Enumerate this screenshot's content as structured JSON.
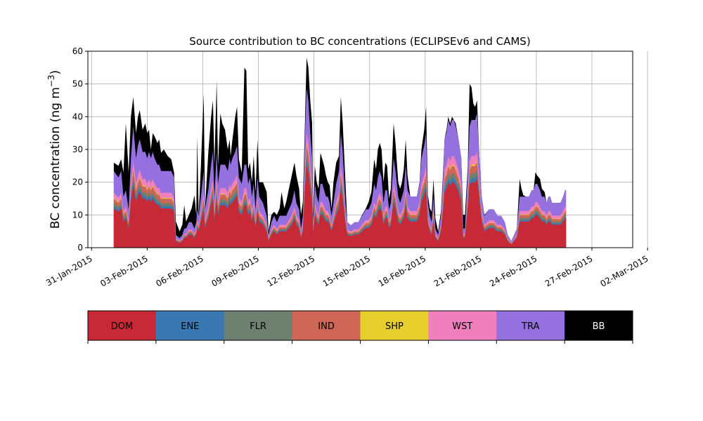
{
  "chart_data": {
    "type": "area",
    "stacked": true,
    "title": "Source contribution to BC concentrations (ECLIPSEv6 and CAMS)",
    "ylabel": "BC concentration (ng m",
    "ylabel_exponent": "−3",
    "ylabel_suffix": ")",
    "xlabel": "",
    "ylim": [
      0,
      60
    ],
    "yticks": [
      0,
      10,
      20,
      30,
      40,
      50,
      60
    ],
    "x_start_date": "31-Jan-2015",
    "xlim_days": [
      -0.2,
      29.2
    ],
    "xticks": [
      "31-Jan-2015",
      "03-Feb-2015",
      "06-Feb-2015",
      "09-Feb-2015",
      "12-Feb-2015",
      "15-Feb-2015",
      "18-Feb-2015",
      "21-Feb-2015",
      "24-Feb-2015",
      "27-Feb-2015",
      "02-Mar-2015"
    ],
    "grid": true,
    "total_points": [
      [
        1.2,
        26
      ],
      [
        1.45,
        25
      ],
      [
        1.6,
        27
      ],
      [
        1.72,
        23
      ],
      [
        1.85,
        38
      ],
      [
        2.0,
        23
      ],
      [
        2.12,
        40
      ],
      [
        2.25,
        46
      ],
      [
        2.4,
        35
      ],
      [
        2.5,
        40
      ],
      [
        2.6,
        42
      ],
      [
        2.75,
        36
      ],
      [
        2.9,
        38
      ],
      [
        3.0,
        35
      ],
      [
        3.1,
        36
      ],
      [
        3.2,
        30
      ],
      [
        3.3,
        35
      ],
      [
        3.4,
        34
      ],
      [
        3.55,
        32
      ],
      [
        3.65,
        33
      ],
      [
        3.75,
        29
      ],
      [
        3.9,
        30
      ],
      [
        4.1,
        28
      ],
      [
        4.3,
        27
      ],
      [
        4.45,
        23
      ],
      [
        4.55,
        8
      ],
      [
        4.75,
        5
      ],
      [
        4.9,
        7
      ],
      [
        5.0,
        13
      ],
      [
        5.1,
        8
      ],
      [
        5.25,
        10
      ],
      [
        5.4,
        12
      ],
      [
        5.55,
        16
      ],
      [
        5.65,
        10
      ],
      [
        5.7,
        34
      ],
      [
        5.78,
        10
      ],
      [
        5.9,
        25
      ],
      [
        6.05,
        47
      ],
      [
        6.12,
        12
      ],
      [
        6.3,
        29
      ],
      [
        6.45,
        40
      ],
      [
        6.55,
        45
      ],
      [
        6.63,
        25
      ],
      [
        6.75,
        51
      ],
      [
        6.82,
        25
      ],
      [
        6.95,
        41
      ],
      [
        7.05,
        38
      ],
      [
        7.2,
        36
      ],
      [
        7.35,
        30
      ],
      [
        7.45,
        33
      ],
      [
        7.5,
        28
      ],
      [
        7.6,
        33
      ],
      [
        7.75,
        40
      ],
      [
        7.85,
        43
      ],
      [
        7.95,
        27
      ],
      [
        8.1,
        23
      ],
      [
        8.25,
        55
      ],
      [
        8.35,
        54
      ],
      [
        8.45,
        24
      ],
      [
        8.55,
        26
      ],
      [
        8.65,
        20
      ],
      [
        8.75,
        28
      ],
      [
        8.85,
        17
      ],
      [
        8.95,
        33
      ],
      [
        9.05,
        20
      ],
      [
        9.25,
        20
      ],
      [
        9.45,
        17
      ],
      [
        9.55,
        5
      ],
      [
        9.7,
        10
      ],
      [
        9.85,
        11
      ],
      [
        10.0,
        10
      ],
      [
        10.15,
        12
      ],
      [
        10.25,
        17
      ],
      [
        10.4,
        12
      ],
      [
        10.5,
        14
      ],
      [
        10.65,
        18
      ],
      [
        10.8,
        22
      ],
      [
        10.95,
        26
      ],
      [
        11.05,
        22
      ],
      [
        11.2,
        18
      ],
      [
        11.3,
        10
      ],
      [
        11.4,
        14
      ],
      [
        11.52,
        39
      ],
      [
        11.6,
        58
      ],
      [
        11.7,
        55
      ],
      [
        11.8,
        45
      ],
      [
        11.9,
        38
      ],
      [
        11.96,
        10
      ],
      [
        12.05,
        25
      ],
      [
        12.15,
        20
      ],
      [
        12.25,
        18
      ],
      [
        12.35,
        29
      ],
      [
        12.45,
        27
      ],
      [
        12.55,
        25
      ],
      [
        12.65,
        22
      ],
      [
        12.75,
        20
      ],
      [
        12.85,
        19
      ],
      [
        12.95,
        12
      ],
      [
        13.05,
        20
      ],
      [
        13.2,
        26
      ],
      [
        13.35,
        28
      ],
      [
        13.45,
        46
      ],
      [
        13.55,
        38
      ],
      [
        13.7,
        20
      ],
      [
        13.8,
        7
      ],
      [
        14.0,
        6
      ],
      [
        14.2,
        7
      ],
      [
        14.4,
        7
      ],
      [
        14.6,
        10
      ],
      [
        14.8,
        12
      ],
      [
        14.95,
        14
      ],
      [
        15.1,
        17
      ],
      [
        15.25,
        27
      ],
      [
        15.35,
        24
      ],
      [
        15.45,
        30
      ],
      [
        15.55,
        32
      ],
      [
        15.65,
        30
      ],
      [
        15.75,
        20
      ],
      [
        15.85,
        26
      ],
      [
        15.95,
        25
      ],
      [
        16.05,
        15
      ],
      [
        16.15,
        18
      ],
      [
        16.3,
        38
      ],
      [
        16.4,
        32
      ],
      [
        16.55,
        20
      ],
      [
        16.65,
        18
      ],
      [
        16.75,
        20
      ],
      [
        16.85,
        24
      ],
      [
        16.95,
        33
      ],
      [
        17.05,
        22
      ],
      [
        17.2,
        10
      ],
      [
        17.4,
        10
      ],
      [
        17.55,
        11
      ],
      [
        17.7,
        20
      ],
      [
        17.8,
        30
      ],
      [
        17.95,
        36
      ],
      [
        18.05,
        43
      ],
      [
        18.15,
        16
      ],
      [
        18.25,
        12
      ],
      [
        18.35,
        11
      ],
      [
        18.45,
        21
      ],
      [
        18.55,
        9
      ],
      [
        18.7,
        5
      ],
      [
        18.85,
        11
      ],
      [
        18.95,
        21
      ],
      [
        19.05,
        32
      ],
      [
        19.15,
        36
      ],
      [
        19.25,
        40
      ],
      [
        19.35,
        38
      ],
      [
        19.45,
        40
      ],
      [
        19.55,
        39
      ],
      [
        19.65,
        38
      ],
      [
        19.8,
        30
      ],
      [
        19.95,
        27
      ],
      [
        20.05,
        10
      ],
      [
        20.15,
        10
      ],
      [
        20.3,
        25
      ],
      [
        20.4,
        50
      ],
      [
        20.5,
        49
      ],
      [
        20.6,
        44
      ],
      [
        20.7,
        43
      ],
      [
        20.8,
        45
      ],
      [
        20.9,
        30
      ],
      [
        21.05,
        15
      ],
      [
        21.2,
        10
      ],
      [
        21.45,
        10
      ],
      [
        21.7,
        9
      ],
      [
        21.9,
        8
      ],
      [
        22.1,
        7
      ],
      [
        22.3,
        6
      ],
      [
        22.45,
        3
      ],
      [
        22.65,
        2
      ],
      [
        22.8,
        3
      ],
      [
        22.95,
        5
      ],
      [
        23.1,
        21
      ],
      [
        23.2,
        18
      ],
      [
        23.3,
        16
      ],
      [
        23.45,
        14
      ],
      [
        23.6,
        13
      ],
      [
        23.75,
        15
      ],
      [
        23.85,
        15
      ],
      [
        23.95,
        23
      ],
      [
        24.05,
        22
      ],
      [
        24.2,
        21
      ],
      [
        24.3,
        18
      ],
      [
        24.45,
        17
      ],
      [
        24.55,
        12
      ],
      [
        24.65,
        14
      ],
      [
        24.75,
        13
      ],
      [
        24.85,
        12
      ],
      [
        25.0,
        12
      ],
      [
        25.15,
        13
      ],
      [
        25.3,
        12
      ],
      [
        25.45,
        13
      ],
      [
        25.55,
        12
      ],
      [
        25.6,
        11
      ]
    ],
    "dom_points": [
      [
        1.2,
        12
      ],
      [
        1.45,
        11
      ],
      [
        1.6,
        12
      ],
      [
        1.72,
        8
      ],
      [
        1.85,
        9
      ],
      [
        2.0,
        6
      ],
      [
        2.12,
        14
      ],
      [
        2.25,
        19
      ],
      [
        2.4,
        14
      ],
      [
        2.5,
        16
      ],
      [
        2.6,
        17
      ],
      [
        2.75,
        15
      ],
      [
        2.9,
        15
      ],
      [
        3.0,
        14
      ],
      [
        3.1,
        15
      ],
      [
        3.2,
        14
      ],
      [
        3.3,
        15
      ],
      [
        3.4,
        14
      ],
      [
        3.55,
        13
      ],
      [
        3.65,
        13
      ],
      [
        3.75,
        12
      ],
      [
        3.9,
        12
      ],
      [
        4.1,
        12
      ],
      [
        4.3,
        12
      ],
      [
        4.45,
        11
      ],
      [
        4.55,
        2
      ],
      [
        4.75,
        1.5
      ],
      [
        4.9,
        2
      ],
      [
        5.0,
        3
      ],
      [
        5.1,
        3
      ],
      [
        5.25,
        4
      ],
      [
        5.4,
        4
      ],
      [
        5.55,
        3
      ],
      [
        5.65,
        4
      ],
      [
        5.7,
        6
      ],
      [
        5.78,
        5
      ],
      [
        5.9,
        8
      ],
      [
        6.05,
        12
      ],
      [
        6.12,
        6
      ],
      [
        6.3,
        9
      ],
      [
        6.45,
        13
      ],
      [
        6.55,
        15
      ],
      [
        6.63,
        8
      ],
      [
        6.75,
        15
      ],
      [
        6.82,
        10
      ],
      [
        6.95,
        13
      ],
      [
        7.05,
        13
      ],
      [
        7.2,
        13
      ],
      [
        7.35,
        12
      ],
      [
        7.45,
        14
      ],
      [
        7.5,
        13
      ],
      [
        7.6,
        14
      ],
      [
        7.75,
        15
      ],
      [
        7.85,
        16
      ],
      [
        7.95,
        11
      ],
      [
        8.1,
        10
      ],
      [
        8.25,
        13
      ],
      [
        8.35,
        13
      ],
      [
        8.45,
        10
      ],
      [
        8.55,
        11
      ],
      [
        8.65,
        8
      ],
      [
        8.75,
        10
      ],
      [
        8.85,
        6
      ],
      [
        8.95,
        11
      ],
      [
        9.05,
        8
      ],
      [
        9.25,
        7
      ],
      [
        9.45,
        5
      ],
      [
        9.55,
        2
      ],
      [
        9.7,
        4
      ],
      [
        9.85,
        5
      ],
      [
        10.0,
        4
      ],
      [
        10.15,
        5
      ],
      [
        10.25,
        5
      ],
      [
        10.4,
        5
      ],
      [
        10.5,
        5
      ],
      [
        10.65,
        6
      ],
      [
        10.8,
        7
      ],
      [
        10.95,
        9
      ],
      [
        11.05,
        7
      ],
      [
        11.2,
        6
      ],
      [
        11.3,
        3
      ],
      [
        11.4,
        5
      ],
      [
        11.52,
        18
      ],
      [
        11.6,
        25
      ],
      [
        11.7,
        23
      ],
      [
        11.8,
        18
      ],
      [
        11.9,
        14
      ],
      [
        11.96,
        4
      ],
      [
        12.05,
        10
      ],
      [
        12.15,
        8
      ],
      [
        12.25,
        7
      ],
      [
        12.35,
        10
      ],
      [
        12.45,
        10
      ],
      [
        12.55,
        9
      ],
      [
        12.65,
        8
      ],
      [
        12.75,
        8
      ],
      [
        12.85,
        7
      ],
      [
        12.95,
        5
      ],
      [
        13.05,
        7
      ],
      [
        13.2,
        10
      ],
      [
        13.35,
        12
      ],
      [
        13.45,
        18
      ],
      [
        13.55,
        15
      ],
      [
        13.7,
        7
      ],
      [
        13.8,
        4
      ],
      [
        14.0,
        3.5
      ],
      [
        14.2,
        4
      ],
      [
        14.4,
        4
      ],
      [
        14.6,
        5
      ],
      [
        14.8,
        6
      ],
      [
        14.95,
        6
      ],
      [
        15.1,
        7
      ],
      [
        15.25,
        10
      ],
      [
        15.35,
        9
      ],
      [
        15.45,
        11
      ],
      [
        15.55,
        12
      ],
      [
        15.65,
        11
      ],
      [
        15.75,
        7
      ],
      [
        15.85,
        9
      ],
      [
        15.95,
        9
      ],
      [
        16.05,
        6
      ],
      [
        16.15,
        7
      ],
      [
        16.3,
        14
      ],
      [
        16.4,
        12
      ],
      [
        16.55,
        8
      ],
      [
        16.65,
        7
      ],
      [
        16.75,
        8
      ],
      [
        16.85,
        9
      ],
      [
        16.95,
        13
      ],
      [
        17.05,
        9
      ],
      [
        17.2,
        8
      ],
      [
        17.4,
        8
      ],
      [
        17.55,
        8
      ],
      [
        17.7,
        10
      ],
      [
        17.8,
        14
      ],
      [
        17.95,
        16
      ],
      [
        18.05,
        18
      ],
      [
        18.15,
        7
      ],
      [
        18.25,
        5
      ],
      [
        18.35,
        4
      ],
      [
        18.45,
        8
      ],
      [
        18.55,
        3
      ],
      [
        18.7,
        2
      ],
      [
        18.85,
        5
      ],
      [
        18.95,
        10
      ],
      [
        19.05,
        17
      ],
      [
        19.15,
        18
      ],
      [
        19.25,
        20
      ],
      [
        19.35,
        19
      ],
      [
        19.45,
        20
      ],
      [
        19.55,
        20
      ],
      [
        19.65,
        19
      ],
      [
        19.8,
        17
      ],
      [
        19.95,
        14
      ],
      [
        20.05,
        3
      ],
      [
        20.15,
        3
      ],
      [
        20.3,
        12
      ],
      [
        20.4,
        19
      ],
      [
        20.5,
        20
      ],
      [
        20.6,
        20
      ],
      [
        20.7,
        20
      ],
      [
        20.8,
        21
      ],
      [
        20.9,
        16
      ],
      [
        21.05,
        8
      ],
      [
        21.2,
        5
      ],
      [
        21.45,
        6
      ],
      [
        21.7,
        6
      ],
      [
        21.9,
        5
      ],
      [
        22.1,
        5
      ],
      [
        22.3,
        4
      ],
      [
        22.45,
        2
      ],
      [
        22.65,
        1
      ],
      [
        22.8,
        2
      ],
      [
        22.95,
        3
      ],
      [
        23.1,
        8
      ],
      [
        23.2,
        8
      ],
      [
        23.3,
        8
      ],
      [
        23.45,
        8
      ],
      [
        23.6,
        8
      ],
      [
        23.75,
        9
      ],
      [
        23.85,
        9
      ],
      [
        23.95,
        10
      ],
      [
        24.05,
        10
      ],
      [
        24.2,
        9
      ],
      [
        24.3,
        8
      ],
      [
        24.45,
        8
      ],
      [
        24.55,
        7
      ],
      [
        24.65,
        8
      ],
      [
        24.75,
        8
      ],
      [
        24.85,
        7
      ],
      [
        25.0,
        7
      ],
      [
        25.15,
        7
      ],
      [
        25.3,
        7
      ],
      [
        25.45,
        8
      ],
      [
        25.55,
        9
      ],
      [
        25.6,
        9
      ]
    ],
    "layer_fractions": {
      "ENE": 0.06,
      "FLR": 0.08,
      "IND": 0.12,
      "SHP": 0.02,
      "WST": 0.14,
      "TRA": 0.58
    },
    "series": [
      {
        "name": "DOM",
        "color": "#c72a36"
      },
      {
        "name": "ENE",
        "color": "#3a78b2"
      },
      {
        "name": "FLR",
        "color": "#6e8070"
      },
      {
        "name": "IND",
        "color": "#cd6657"
      },
      {
        "name": "SHP",
        "color": "#e6cf2d"
      },
      {
        "name": "WST",
        "color": "#f07fbd"
      },
      {
        "name": "TRA",
        "color": "#9471de"
      },
      {
        "name": "BB",
        "color": "#000000"
      }
    ],
    "legend": "below"
  }
}
